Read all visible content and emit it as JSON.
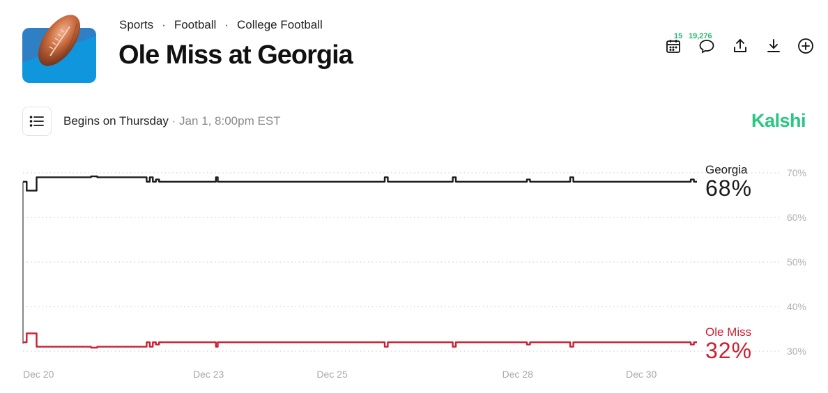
{
  "breadcrumb": [
    "Sports",
    "Football",
    "College Football"
  ],
  "breadcrumb_sep": "·",
  "title": "Ole Miss at Georgia",
  "actions": {
    "calendar_count": "15",
    "comments_count": "19,276"
  },
  "icons": [
    "football-icon",
    "calendar-icon",
    "comment-icon",
    "share-icon",
    "download-icon",
    "add-icon",
    "list-icon"
  ],
  "schedule": {
    "begins": "Begins on Thursday",
    "sep": " · ",
    "date": "Jan 1, 8:00pm EST"
  },
  "brand": "Kalshi",
  "colors": {
    "brand": "#28c782",
    "count": "#21b86e",
    "georgia": "#1a1a1a",
    "ole_miss": "#cc1f31"
  },
  "chart_data": {
    "type": "line",
    "title": "",
    "xlabel": "",
    "ylabel": "",
    "ylim": [
      30,
      70
    ],
    "yticks": [
      "70%",
      "60%",
      "50%",
      "40%",
      "30%"
    ],
    "yticks_values": [
      70,
      60,
      50,
      40,
      30
    ],
    "xticks": [
      {
        "label": "Dec 20",
        "value": 20
      },
      {
        "label": "Dec 23",
        "value": 23
      },
      {
        "label": "Dec 25",
        "value": 25
      },
      {
        "label": "Dec 28",
        "value": 28
      },
      {
        "label": "Dec 30",
        "value": 30
      }
    ],
    "x_range": [
      20,
      30.9
    ],
    "grid": true,
    "series": [
      {
        "name": "Georgia",
        "label_value": "68%",
        "color": "#1a1a1a",
        "x": [
          20,
          20.06,
          20.1,
          20.12,
          20.22,
          20.26,
          21.1,
          21.2,
          21.9,
          22.0,
          22.05,
          22.1,
          22.15,
          22.2,
          22.3,
          23.1,
          23.12,
          23.15,
          25.8,
          25.85,
          25.9,
          26.9,
          26.95,
          27.0,
          28.1,
          28.15,
          28.2,
          28.8,
          28.85,
          28.9,
          30.75,
          30.8,
          30.85,
          30.9
        ],
        "values": [
          68,
          66,
          66,
          66,
          69,
          69,
          69.2,
          69,
          69,
          68,
          69,
          68,
          68.5,
          68,
          68,
          68,
          69,
          68,
          68,
          69,
          68,
          68,
          69,
          68,
          68,
          68.5,
          68,
          68,
          69,
          68,
          68,
          68.5,
          68,
          68
        ]
      },
      {
        "name": "Ole Miss",
        "label_value": "32%",
        "color": "#cc1f31",
        "x": [
          20,
          20.06,
          20.1,
          20.22,
          20.26,
          21.1,
          21.2,
          21.9,
          22.0,
          22.05,
          22.1,
          22.15,
          22.2,
          22.3,
          23.1,
          23.12,
          23.15,
          25.8,
          25.85,
          25.9,
          26.9,
          26.95,
          27.0,
          28.1,
          28.15,
          28.2,
          28.8,
          28.85,
          28.9,
          30.75,
          30.8,
          30.85,
          30.9
        ],
        "values": [
          32,
          34,
          34,
          31,
          31,
          30.8,
          31,
          31,
          32,
          31,
          32,
          31.5,
          32,
          32,
          32,
          31,
          32,
          32,
          31,
          32,
          32,
          31,
          32,
          32,
          31.5,
          32,
          32,
          31,
          32,
          32,
          31.5,
          32,
          32
        ]
      }
    ]
  }
}
